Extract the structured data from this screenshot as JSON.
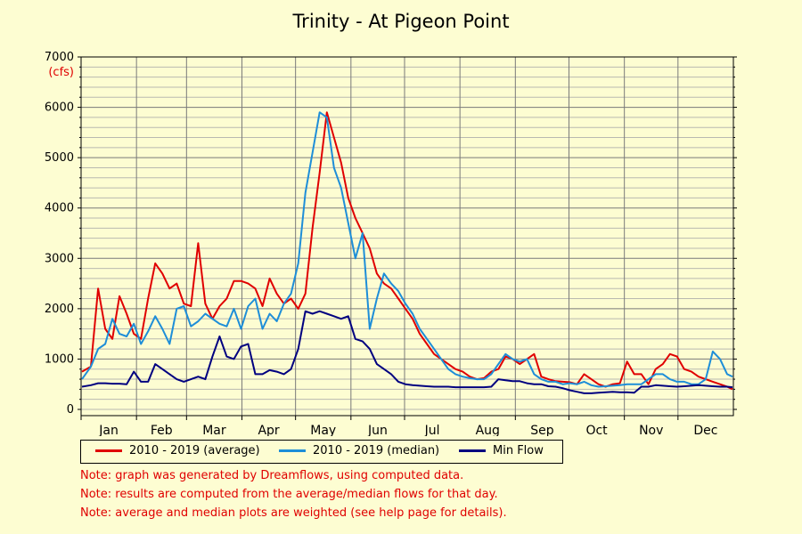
{
  "chart_data": {
    "type": "line",
    "title": "Trinity - At Pigeon Point",
    "ylabel": "(cfs)",
    "ylim": [
      0,
      7000
    ],
    "yticks": [
      0,
      1000,
      2000,
      3000,
      4000,
      5000,
      6000,
      7000
    ],
    "months": [
      "Jan",
      "Feb",
      "Mar",
      "Apr",
      "May",
      "Jun",
      "Jul",
      "Aug",
      "Sep",
      "Oct",
      "Nov",
      "Dec"
    ],
    "grid": true,
    "legend_position": "bottom",
    "series": [
      {
        "name": "2010 - 2019 (average)",
        "color": "#e00000",
        "x": [
          1,
          6,
          10,
          14,
          18,
          22,
          26,
          30,
          34,
          38,
          42,
          46,
          50,
          54,
          58,
          62,
          66,
          70,
          74,
          78,
          82,
          86,
          90,
          94,
          98,
          102,
          106,
          110,
          114,
          118,
          122,
          126,
          130,
          134,
          138,
          142,
          146,
          150,
          154,
          158,
          162,
          166,
          170,
          174,
          178,
          182,
          186,
          190,
          194,
          198,
          202,
          206,
          210,
          214,
          218,
          222,
          226,
          230,
          234,
          238,
          242,
          246,
          250,
          254,
          258,
          262,
          266,
          270,
          274,
          278,
          282,
          286,
          290,
          294,
          298,
          302,
          306,
          310,
          314,
          318,
          322,
          326,
          330,
          334,
          338,
          342,
          346,
          350,
          354,
          358,
          362,
          365
        ],
        "values": [
          750,
          850,
          2400,
          1600,
          1400,
          2250,
          1900,
          1500,
          1400,
          2200,
          2900,
          2700,
          2400,
          2500,
          2100,
          2050,
          3300,
          2100,
          1800,
          2050,
          2200,
          2550,
          2550,
          2500,
          2400,
          2050,
          2600,
          2300,
          2100,
          2200,
          2000,
          2300,
          3600,
          4700,
          5900,
          5400,
          4900,
          4200,
          3800,
          3500,
          3200,
          2700,
          2500,
          2400,
          2200,
          2000,
          1800,
          1500,
          1300,
          1100,
          1000,
          900,
          800,
          750,
          650,
          600,
          620,
          750,
          800,
          1050,
          1000,
          900,
          1000,
          1100,
          650,
          600,
          560,
          550,
          540,
          500,
          700,
          600,
          500,
          450,
          500,
          520,
          950,
          700,
          700,
          500,
          800,
          900,
          1100,
          1050,
          800,
          750,
          650,
          600,
          550,
          500,
          450,
          400
        ]
      },
      {
        "name": "2010 - 2019 (median)",
        "color": "#1e8ed8",
        "x": [
          1,
          6,
          10,
          14,
          18,
          22,
          26,
          30,
          34,
          38,
          42,
          46,
          50,
          54,
          58,
          62,
          66,
          70,
          74,
          78,
          82,
          86,
          90,
          94,
          98,
          102,
          106,
          110,
          114,
          118,
          122,
          126,
          130,
          134,
          138,
          142,
          146,
          150,
          154,
          158,
          162,
          166,
          170,
          174,
          178,
          182,
          186,
          190,
          194,
          198,
          202,
          206,
          210,
          214,
          218,
          222,
          226,
          230,
          234,
          238,
          242,
          246,
          250,
          254,
          258,
          262,
          266,
          270,
          274,
          278,
          282,
          286,
          290,
          294,
          298,
          302,
          306,
          310,
          314,
          318,
          322,
          326,
          330,
          334,
          338,
          342,
          346,
          350,
          354,
          358,
          362,
          365
        ],
        "values": [
          600,
          850,
          1200,
          1300,
          1800,
          1500,
          1450,
          1700,
          1300,
          1550,
          1850,
          1600,
          1300,
          2000,
          2050,
          1650,
          1750,
          1900,
          1800,
          1700,
          1650,
          2000,
          1600,
          2050,
          2200,
          1600,
          1900,
          1750,
          2100,
          2300,
          2900,
          4300,
          5100,
          5900,
          5800,
          4800,
          4400,
          3700,
          3000,
          3500,
          1600,
          2200,
          2700,
          2500,
          2350,
          2100,
          1900,
          1600,
          1400,
          1200,
          1000,
          800,
          700,
          650,
          620,
          600,
          600,
          700,
          900,
          1100,
          1000,
          950,
          1000,
          700,
          600,
          550,
          550,
          500,
          520,
          500,
          550,
          480,
          450,
          460,
          470,
          480,
          500,
          500,
          500,
          600,
          700,
          700,
          600,
          550,
          550,
          500,
          500,
          600,
          1150,
          1000,
          700,
          650
        ]
      },
      {
        "name": "Min Flow",
        "color": "#000080",
        "x": [
          1,
          6,
          10,
          14,
          18,
          22,
          26,
          30,
          34,
          38,
          42,
          46,
          50,
          54,
          58,
          62,
          66,
          70,
          74,
          78,
          82,
          86,
          90,
          94,
          98,
          102,
          106,
          110,
          114,
          118,
          122,
          126,
          130,
          134,
          138,
          142,
          146,
          150,
          154,
          158,
          162,
          166,
          170,
          174,
          178,
          182,
          186,
          190,
          194,
          198,
          202,
          206,
          210,
          214,
          218,
          222,
          226,
          230,
          234,
          238,
          242,
          246,
          250,
          254,
          258,
          262,
          266,
          270,
          274,
          278,
          282,
          286,
          290,
          294,
          298,
          302,
          306,
          310,
          314,
          318,
          322,
          326,
          330,
          334,
          338,
          342,
          346,
          350,
          354,
          358,
          362,
          365
        ],
        "values": [
          450,
          480,
          520,
          520,
          510,
          510,
          500,
          750,
          550,
          550,
          900,
          800,
          700,
          600,
          550,
          600,
          650,
          600,
          1050,
          1450,
          1050,
          1000,
          1250,
          1300,
          700,
          700,
          780,
          750,
          700,
          800,
          1200,
          1950,
          1900,
          1950,
          1900,
          1850,
          1800,
          1850,
          1400,
          1350,
          1200,
          900,
          800,
          700,
          550,
          500,
          480,
          470,
          460,
          450,
          450,
          450,
          440,
          440,
          440,
          440,
          440,
          450,
          600,
          580,
          560,
          560,
          520,
          500,
          500,
          460,
          450,
          420,
          380,
          350,
          320,
          320,
          330,
          340,
          350,
          340,
          340,
          330,
          450,
          450,
          480,
          470,
          460,
          450,
          460,
          470,
          480,
          470,
          460,
          450,
          450,
          440
        ]
      }
    ]
  },
  "notes": [
    "Note: graph was generated by Dreamflows, using computed data.",
    "Note: results are computed from the average/median flows for that day.",
    "Note: average and median plots are weighted (see help page for details)."
  ]
}
